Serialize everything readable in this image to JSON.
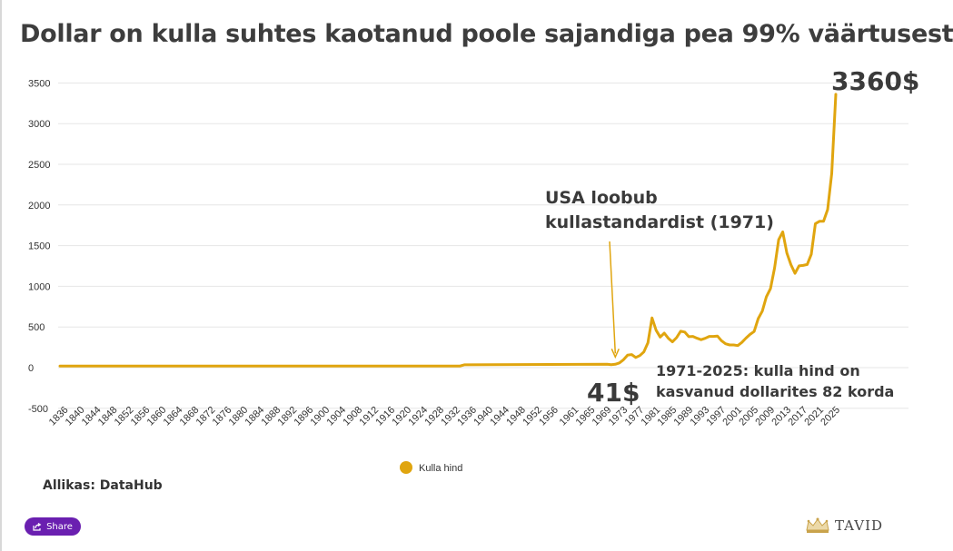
{
  "chart_data": {
    "type": "line",
    "title": "Dollar on kulla suhtes kaotanud poole sajandiga pea 99% väärtusest",
    "xlabel": "",
    "ylabel": "",
    "ylim": [
      -500,
      3500
    ],
    "yticks": [
      -500,
      0,
      500,
      1000,
      1500,
      2000,
      2500,
      3000,
      3500
    ],
    "xlim": [
      1835,
      2025
    ],
    "xticks": [
      1836,
      1840,
      1844,
      1848,
      1852,
      1856,
      1860,
      1864,
      1868,
      1872,
      1876,
      1880,
      1884,
      1888,
      1892,
      1896,
      1900,
      1904,
      1908,
      1912,
      1916,
      1920,
      1924,
      1928,
      1932,
      1936,
      1940,
      1944,
      1948,
      1952,
      1956,
      1961,
      1965,
      1969,
      1973,
      1977,
      1981,
      1985,
      1989,
      1993,
      1997,
      2001,
      2005,
      2009,
      2013,
      2017,
      2021,
      2025
    ],
    "grid": true,
    "legend_position": "bottom",
    "series": [
      {
        "name": "Kulla hind",
        "color": "#e0a50f",
        "points": [
          [
            1835,
            20
          ],
          [
            1933,
            20
          ],
          [
            1934,
            35
          ],
          [
            1969,
            41
          ],
          [
            1970,
            36
          ],
          [
            1971,
            41
          ],
          [
            1972,
            58
          ],
          [
            1973,
            97
          ],
          [
            1974,
            154
          ],
          [
            1975,
            161
          ],
          [
            1976,
            125
          ],
          [
            1977,
            148
          ],
          [
            1978,
            193
          ],
          [
            1979,
            306
          ],
          [
            1980,
            612
          ],
          [
            1981,
            460
          ],
          [
            1982,
            376
          ],
          [
            1983,
            424
          ],
          [
            1984,
            361
          ],
          [
            1985,
            317
          ],
          [
            1986,
            368
          ],
          [
            1987,
            447
          ],
          [
            1988,
            437
          ],
          [
            1989,
            381
          ],
          [
            1990,
            384
          ],
          [
            1991,
            362
          ],
          [
            1992,
            344
          ],
          [
            1993,
            360
          ],
          [
            1994,
            384
          ],
          [
            1995,
            384
          ],
          [
            1996,
            388
          ],
          [
            1997,
            331
          ],
          [
            1998,
            294
          ],
          [
            1999,
            279
          ],
          [
            2000,
            279
          ],
          [
            2001,
            271
          ],
          [
            2002,
            310
          ],
          [
            2003,
            363
          ],
          [
            2004,
            409
          ],
          [
            2005,
            444
          ],
          [
            2006,
            603
          ],
          [
            2007,
            695
          ],
          [
            2008,
            872
          ],
          [
            2009,
            972
          ],
          [
            2010,
            1225
          ],
          [
            2011,
            1572
          ],
          [
            2012,
            1669
          ],
          [
            2013,
            1411
          ],
          [
            2014,
            1266
          ],
          [
            2015,
            1160
          ],
          [
            2016,
            1251
          ],
          [
            2017,
            1257
          ],
          [
            2018,
            1268
          ],
          [
            2019,
            1393
          ],
          [
            2020,
            1770
          ],
          [
            2021,
            1799
          ],
          [
            2022,
            1800
          ],
          [
            2023,
            1943
          ],
          [
            2024,
            2386
          ],
          [
            2025,
            3360
          ]
        ]
      }
    ],
    "annotations": [
      {
        "text_lines": [
          "USA loobub",
          "kullastandardist (1971)"
        ],
        "arrow_to": [
          1971,
          41
        ]
      },
      {
        "text": "41$",
        "anchor": [
          1971,
          41
        ]
      },
      {
        "text": "3360$",
        "anchor": [
          2025,
          3360
        ]
      },
      {
        "text_lines": [
          "1971-2025: kulla hind on",
          "kasvanud dollarites 82 korda"
        ]
      }
    ]
  },
  "source_label": "Allikas: DataHub",
  "share_label": "Share",
  "brand_name": "TAVID"
}
